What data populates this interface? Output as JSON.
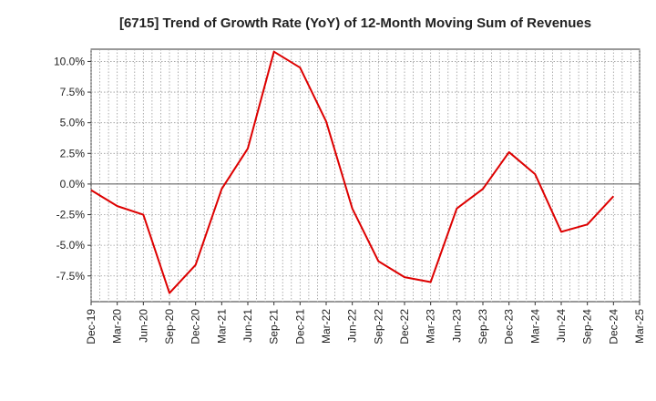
{
  "chart_data": {
    "type": "line",
    "title": "[6715]  Trend of Growth Rate (YoY) of 12-Month Moving Sum of Revenues",
    "xlabel": "",
    "ylabel": "",
    "categories": [
      "Dec-19",
      "Mar-20",
      "Jun-20",
      "Sep-20",
      "Dec-20",
      "Mar-21",
      "Jun-21",
      "Sep-21",
      "Dec-21",
      "Mar-22",
      "Jun-22",
      "Sep-22",
      "Dec-22",
      "Mar-23",
      "Jun-23",
      "Sep-23",
      "Dec-23",
      "Mar-24",
      "Jun-24",
      "Sep-24",
      "Dec-24",
      "Mar-25"
    ],
    "y_ticks": [
      10.0,
      7.5,
      5.0,
      2.5,
      0.0,
      -2.5,
      -5.0,
      -7.5
    ],
    "y_tick_labels": [
      "10.0%",
      "7.5%",
      "5.0%",
      "2.5%",
      "0.0%",
      "-2.5%",
      "-5.0%",
      "-7.5%"
    ],
    "ylim": [
      -9.6,
      11.0
    ],
    "grid": true,
    "series": [
      {
        "color": "#dd0000",
        "values": [
          -0.5,
          -1.8,
          -2.5,
          -8.9,
          -6.6,
          -0.4,
          2.9,
          10.8,
          9.5,
          5.1,
          -2.0,
          -6.3,
          -7.6,
          -8.0,
          -2.0,
          -0.4,
          2.6,
          0.8,
          -3.9,
          -3.3,
          -1.0,
          null
        ]
      }
    ]
  }
}
